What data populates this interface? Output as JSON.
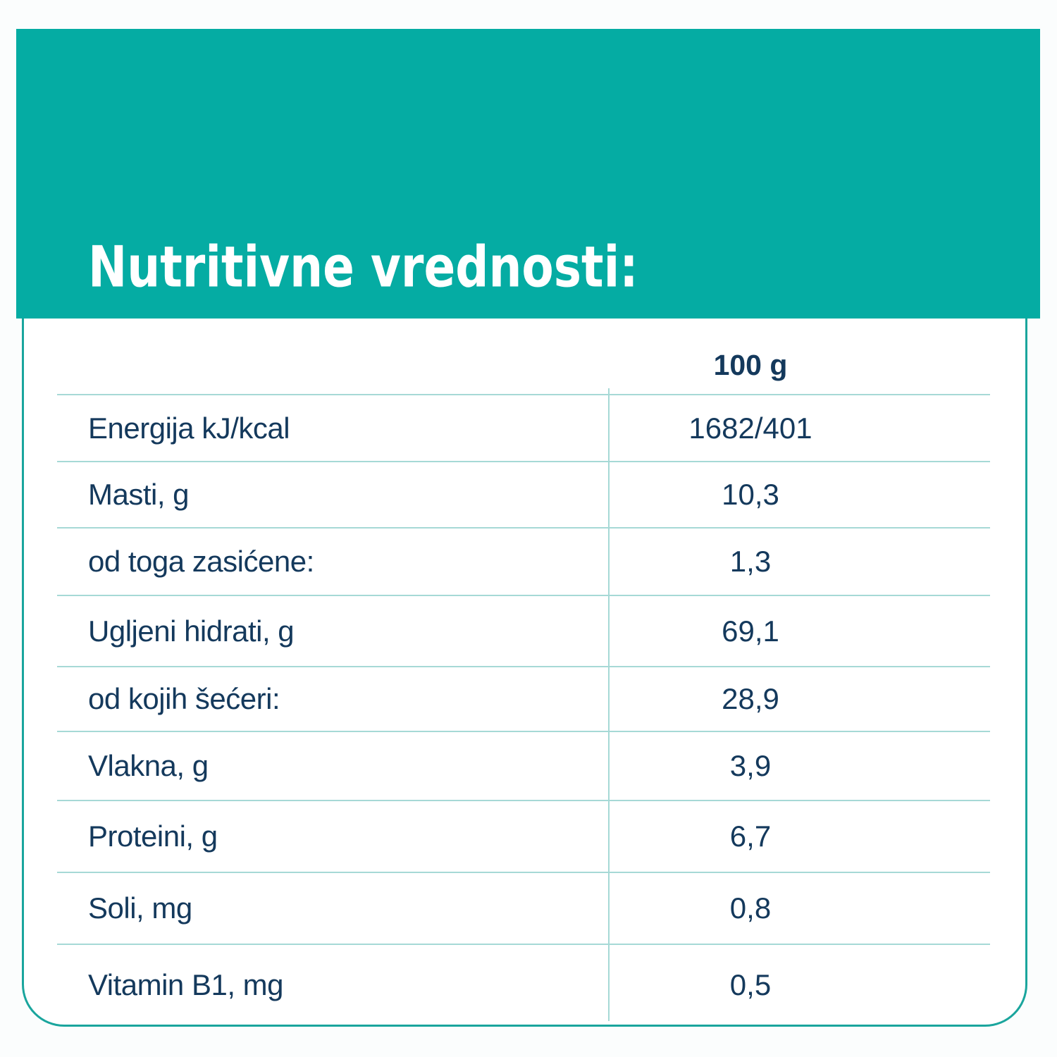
{
  "page_title": "Nutritivne vrednosti:",
  "nutrition_table": {
    "serving_header": "100 g",
    "rows": [
      {
        "label": "Energija kJ/kcal",
        "value": "1682/401"
      },
      {
        "label": "Masti, g",
        "value": "10,3"
      },
      {
        "label": "od toga zasićene:",
        "value": "1,3"
      },
      {
        "label": "Ugljeni hidrati, g",
        "value": "69,1"
      },
      {
        "label": "od kojih šećeri:",
        "value": "28,9"
      },
      {
        "label": "Vlakna, g",
        "value": "3,9"
      },
      {
        "label": "Proteini, g",
        "value": "6,7"
      },
      {
        "label": "Soli, mg",
        "value": "0,8"
      },
      {
        "label": "Vitamin B1, mg",
        "value": "0,5"
      }
    ]
  },
  "colors": {
    "header_teal": "#05ACA3",
    "card_border_teal": "#1AA59D",
    "row_divider_teal": "#A6D9D6",
    "text_navy": "#14395C",
    "page_background": "#FBFDFD",
    "card_background": "#FFFFFF"
  }
}
